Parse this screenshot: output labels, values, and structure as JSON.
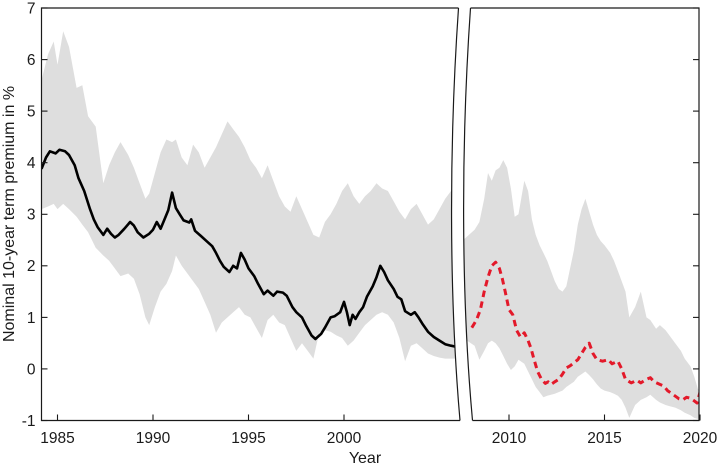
{
  "chart_data": {
    "type": "line",
    "title": "",
    "xlabel": "Year",
    "ylabel": "Nominal 10-year term premium in %",
    "ylim": [
      -1,
      7
    ],
    "yticks": [
      -1,
      0,
      1,
      2,
      3,
      4,
      5,
      6,
      7
    ],
    "grid": false,
    "legend": null,
    "axis_break_years": [
      2006,
      2008
    ],
    "band_color": "#dedede",
    "axis_color": "#1a1a1a",
    "panels": [
      {
        "label": "pre-break estimate 1984-2005",
        "xlim": [
          1984.16,
          2006.0
        ],
        "xticks": [
          1985,
          1990,
          1995,
          2000
        ],
        "line": {
          "name": "nominal 10-year term premium (solid black)",
          "style": "solid",
          "color": "#000000",
          "x": [
            1984.16,
            1984.4,
            1984.6,
            1984.9,
            1985.1,
            1985.4,
            1985.6,
            1985.9,
            1986.1,
            1986.4,
            1986.7,
            1986.9,
            1987.1,
            1987.4,
            1987.6,
            1987.8,
            1988.0,
            1988.2,
            1988.5,
            1988.8,
            1989.0,
            1989.2,
            1989.5,
            1989.8,
            1990.0,
            1990.2,
            1990.4,
            1990.6,
            1990.8,
            1991.0,
            1991.2,
            1991.4,
            1991.6,
            1991.9,
            1992.0,
            1992.2,
            1992.5,
            1992.8,
            1993.1,
            1993.3,
            1993.5,
            1993.7,
            1994.0,
            1994.2,
            1994.4,
            1994.6,
            1994.8,
            1995.0,
            1995.3,
            1995.5,
            1995.8,
            1996.0,
            1996.3,
            1996.5,
            1996.8,
            1997.0,
            1997.3,
            1997.5,
            1997.8,
            1998.0,
            1998.3,
            1998.5,
            1998.8,
            1999.0,
            1999.3,
            1999.5,
            1999.8,
            2000.0,
            2000.15,
            2000.3,
            2000.45,
            2000.6,
            2000.8,
            2001.0,
            2001.2,
            2001.5,
            2001.7,
            2001.9,
            2002.1,
            2002.3,
            2002.6,
            2002.8,
            2003.0,
            2003.2,
            2003.5,
            2003.7,
            2003.9,
            2004.1,
            2004.4,
            2004.7,
            2005.0,
            2005.3,
            2005.6,
            2006.0
          ],
          "y": [
            3.88,
            4.1,
            4.22,
            4.18,
            4.25,
            4.22,
            4.15,
            3.95,
            3.7,
            3.45,
            3.1,
            2.9,
            2.75,
            2.6,
            2.72,
            2.62,
            2.55,
            2.6,
            2.72,
            2.85,
            2.78,
            2.65,
            2.55,
            2.62,
            2.7,
            2.85,
            2.72,
            2.9,
            3.08,
            3.42,
            3.12,
            3.0,
            2.88,
            2.84,
            2.9,
            2.68,
            2.58,
            2.48,
            2.38,
            2.25,
            2.1,
            1.98,
            1.88,
            2.0,
            1.95,
            2.25,
            2.12,
            1.95,
            1.8,
            1.65,
            1.45,
            1.52,
            1.42,
            1.5,
            1.48,
            1.42,
            1.2,
            1.1,
            1.0,
            0.85,
            0.65,
            0.58,
            0.68,
            0.8,
            1.0,
            1.02,
            1.1,
            1.3,
            1.1,
            0.85,
            1.05,
            0.97,
            1.1,
            1.2,
            1.4,
            1.6,
            1.78,
            2.0,
            1.88,
            1.72,
            1.55,
            1.4,
            1.35,
            1.12,
            1.05,
            1.1,
            1.0,
            0.88,
            0.72,
            0.62,
            0.55,
            0.48,
            0.45,
            0.42
          ]
        },
        "band": {
          "name": "uncertainty band",
          "x": [
            1984.16,
            1984.5,
            1984.8,
            1985.0,
            1985.3,
            1985.6,
            1986.0,
            1986.3,
            1986.6,
            1987.0,
            1987.4,
            1987.7,
            1988.0,
            1988.3,
            1988.7,
            1989.0,
            1989.3,
            1989.6,
            1989.8,
            1990.1,
            1990.4,
            1990.7,
            1991.0,
            1991.2,
            1991.5,
            1991.8,
            1992.1,
            1992.4,
            1992.7,
            1993.0,
            1993.3,
            1993.6,
            1993.9,
            1994.2,
            1994.5,
            1994.8,
            1995.1,
            1995.4,
            1995.7,
            1996.0,
            1996.3,
            1996.6,
            1996.9,
            1997.2,
            1997.5,
            1997.8,
            1998.1,
            1998.4,
            1998.7,
            1999.0,
            1999.3,
            1999.6,
            1999.9,
            2000.2,
            2000.5,
            2000.8,
            2001.1,
            2001.4,
            2001.7,
            2002.0,
            2002.3,
            2002.6,
            2002.9,
            2003.2,
            2003.5,
            2003.8,
            2004.1,
            2004.4,
            2004.7,
            2005.0,
            2005.3,
            2005.6,
            2005.9,
            2006.1
          ],
          "lower": [
            3.1,
            3.15,
            3.2,
            3.1,
            3.2,
            3.1,
            2.95,
            2.8,
            2.65,
            2.35,
            2.2,
            2.1,
            1.95,
            1.8,
            1.85,
            1.75,
            1.45,
            1.0,
            0.85,
            1.2,
            1.5,
            1.65,
            1.9,
            2.2,
            2.0,
            1.85,
            1.7,
            1.55,
            1.3,
            1.05,
            0.7,
            0.9,
            1.0,
            1.1,
            1.2,
            1.05,
            1.0,
            0.8,
            0.6,
            0.95,
            1.05,
            0.9,
            0.85,
            0.6,
            0.35,
            0.5,
            0.35,
            0.2,
            0.7,
            0.75,
            0.72,
            0.65,
            0.6,
            0.45,
            0.55,
            0.7,
            0.85,
            0.95,
            1.05,
            1.1,
            1.05,
            0.9,
            0.6,
            0.15,
            0.45,
            0.5,
            0.4,
            0.3,
            0.25,
            0.22,
            0.2,
            0.2,
            0.2,
            0.2
          ],
          "upper": [
            5.6,
            6.1,
            6.35,
            5.9,
            6.55,
            6.25,
            5.45,
            5.5,
            4.9,
            4.7,
            3.6,
            3.95,
            4.2,
            4.4,
            4.15,
            3.9,
            3.6,
            3.3,
            3.4,
            3.8,
            4.2,
            4.45,
            4.4,
            4.45,
            4.1,
            3.95,
            4.35,
            4.2,
            3.9,
            4.1,
            4.3,
            4.55,
            4.8,
            4.65,
            4.5,
            4.3,
            4.05,
            3.9,
            3.7,
            3.95,
            3.65,
            3.35,
            3.15,
            3.05,
            3.35,
            3.1,
            2.85,
            2.6,
            2.55,
            2.85,
            3.0,
            3.2,
            3.45,
            3.6,
            3.35,
            3.2,
            3.35,
            3.45,
            3.6,
            3.5,
            3.45,
            3.25,
            3.05,
            2.9,
            3.1,
            3.2,
            3.0,
            2.8,
            2.9,
            3.1,
            3.3,
            3.45,
            3.5,
            3.5
          ]
        }
      },
      {
        "label": "post-break estimate 2008-2020",
        "xlim": [
          2008.0,
          2020.0
        ],
        "xticks": [
          2010,
          2015,
          2020
        ],
        "line": {
          "name": "nominal 10-year term premium (dashed red)",
          "style": "dashed",
          "color": "#e3192a",
          "x": [
            2008.05,
            2008.3,
            2008.5,
            2008.7,
            2008.9,
            2009.1,
            2009.3,
            2009.5,
            2009.65,
            2009.8,
            2010.0,
            2010.2,
            2010.4,
            2010.6,
            2010.8,
            2011.0,
            2011.15,
            2011.3,
            2011.5,
            2011.7,
            2011.9,
            2012.05,
            2012.2,
            2012.4,
            2012.6,
            2012.8,
            2013.0,
            2013.2,
            2013.4,
            2013.6,
            2013.8,
            2014.0,
            2014.2,
            2014.4,
            2014.6,
            2014.9,
            2015.2,
            2015.4,
            2015.7,
            2015.9,
            2016.1,
            2016.4,
            2016.7,
            2016.9,
            2017.2,
            2017.4,
            2017.6,
            2017.9,
            2018.1,
            2018.3,
            2018.6,
            2018.9,
            2019.1,
            2019.3,
            2019.5,
            2019.7,
            2019.85,
            2020.0
          ],
          "y": [
            0.8,
            0.95,
            1.15,
            1.5,
            1.78,
            2.0,
            2.07,
            1.95,
            1.75,
            1.5,
            1.15,
            1.05,
            0.75,
            0.62,
            0.7,
            0.55,
            0.4,
            0.2,
            -0.05,
            -0.2,
            -0.28,
            -0.25,
            -0.3,
            -0.25,
            -0.2,
            -0.1,
            0.02,
            0.06,
            0.12,
            0.18,
            0.3,
            0.42,
            0.5,
            0.3,
            0.18,
            0.15,
            0.18,
            0.1,
            0.15,
            0.0,
            -0.2,
            -0.27,
            -0.22,
            -0.27,
            -0.2,
            -0.17,
            -0.25,
            -0.3,
            -0.33,
            -0.42,
            -0.5,
            -0.58,
            -0.6,
            -0.55,
            -0.57,
            -0.62,
            -0.66,
            -0.45
          ]
        },
        "band": {
          "name": "uncertainty band",
          "x": [
            2007.6,
            2008.2,
            2008.45,
            2008.7,
            2008.9,
            2009.1,
            2009.3,
            2009.5,
            2009.7,
            2009.9,
            2010.1,
            2010.3,
            2010.5,
            2010.8,
            2011.0,
            2011.2,
            2011.4,
            2011.6,
            2011.8,
            2012.0,
            2012.2,
            2012.4,
            2012.6,
            2012.8,
            2013.0,
            2013.2,
            2013.4,
            2013.6,
            2013.8,
            2014.0,
            2014.2,
            2014.4,
            2014.6,
            2014.8,
            2015.0,
            2015.3,
            2015.5,
            2015.7,
            2015.9,
            2016.1,
            2016.3,
            2016.6,
            2016.9,
            2017.2,
            2017.4,
            2017.7,
            2017.9,
            2018.2,
            2018.4,
            2018.7,
            2019.0,
            2019.2,
            2019.5,
            2019.7,
            2019.9,
            2020.0
          ],
          "lower": [
            0.6,
            0.45,
            0.18,
            0.35,
            0.5,
            0.55,
            0.5,
            0.4,
            0.25,
            0.1,
            -0.02,
            0.05,
            0.18,
            0.1,
            -0.05,
            -0.2,
            -0.35,
            -0.45,
            -0.55,
            -0.52,
            -0.5,
            -0.48,
            -0.45,
            -0.42,
            -0.35,
            -0.3,
            -0.25,
            -0.15,
            -0.1,
            -0.05,
            -0.12,
            -0.2,
            -0.3,
            -0.38,
            -0.42,
            -0.45,
            -0.48,
            -0.52,
            -0.6,
            -0.75,
            -0.95,
            -0.7,
            -0.6,
            -0.55,
            -0.5,
            -0.6,
            -0.65,
            -0.7,
            -0.72,
            -0.75,
            -0.8,
            -0.85,
            -0.9,
            -0.95,
            -0.97,
            -0.9
          ],
          "upper": [
            2.5,
            2.7,
            2.85,
            3.3,
            3.8,
            3.65,
            3.85,
            3.9,
            4.05,
            3.9,
            3.5,
            2.95,
            3.0,
            3.65,
            3.45,
            2.9,
            2.6,
            2.4,
            2.25,
            2.1,
            1.9,
            1.7,
            1.55,
            1.5,
            1.6,
            1.95,
            2.3,
            2.8,
            3.1,
            3.3,
            3.05,
            2.8,
            2.6,
            2.48,
            2.4,
            2.25,
            2.1,
            1.9,
            1.7,
            1.5,
            1.0,
            1.2,
            1.5,
            1.0,
            0.95,
            0.78,
            0.85,
            0.75,
            0.65,
            0.5,
            0.35,
            0.2,
            0.05,
            -0.15,
            -0.4,
            -0.35
          ]
        }
      }
    ]
  }
}
